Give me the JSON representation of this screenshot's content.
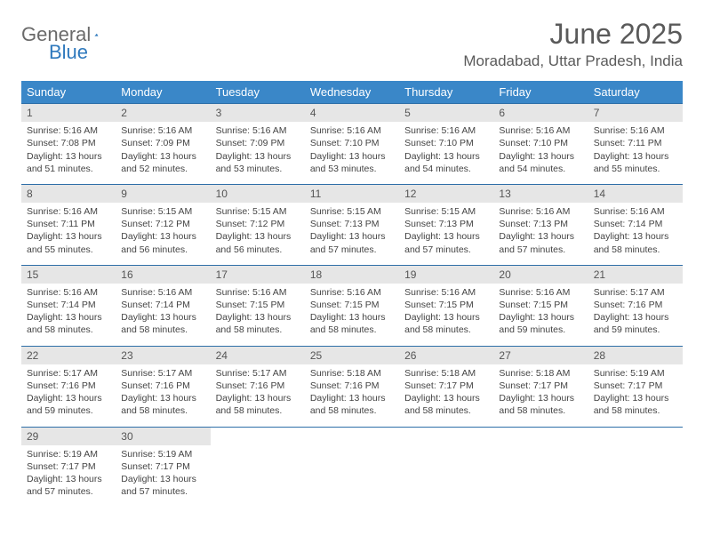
{
  "logo": {
    "textA": "General",
    "textB": "Blue"
  },
  "header": {
    "title": "June 2025",
    "location": "Moradabad, Uttar Pradesh, India"
  },
  "colors": {
    "header_bg": "#3a87c8",
    "header_text": "#ffffff",
    "dayrow_bg": "#e6e6e6",
    "border": "#2f6fa8",
    "logo_gray": "#6a6a6a",
    "logo_blue": "#2f79bd"
  },
  "weekdays": [
    "Sunday",
    "Monday",
    "Tuesday",
    "Wednesday",
    "Thursday",
    "Friday",
    "Saturday"
  ],
  "days": [
    {
      "n": "1",
      "sr": "5:16 AM",
      "ss": "7:08 PM",
      "dl": "13 hours and 51 minutes."
    },
    {
      "n": "2",
      "sr": "5:16 AM",
      "ss": "7:09 PM",
      "dl": "13 hours and 52 minutes."
    },
    {
      "n": "3",
      "sr": "5:16 AM",
      "ss": "7:09 PM",
      "dl": "13 hours and 53 minutes."
    },
    {
      "n": "4",
      "sr": "5:16 AM",
      "ss": "7:10 PM",
      "dl": "13 hours and 53 minutes."
    },
    {
      "n": "5",
      "sr": "5:16 AM",
      "ss": "7:10 PM",
      "dl": "13 hours and 54 minutes."
    },
    {
      "n": "6",
      "sr": "5:16 AM",
      "ss": "7:10 PM",
      "dl": "13 hours and 54 minutes."
    },
    {
      "n": "7",
      "sr": "5:16 AM",
      "ss": "7:11 PM",
      "dl": "13 hours and 55 minutes."
    },
    {
      "n": "8",
      "sr": "5:16 AM",
      "ss": "7:11 PM",
      "dl": "13 hours and 55 minutes."
    },
    {
      "n": "9",
      "sr": "5:15 AM",
      "ss": "7:12 PM",
      "dl": "13 hours and 56 minutes."
    },
    {
      "n": "10",
      "sr": "5:15 AM",
      "ss": "7:12 PM",
      "dl": "13 hours and 56 minutes."
    },
    {
      "n": "11",
      "sr": "5:15 AM",
      "ss": "7:13 PM",
      "dl": "13 hours and 57 minutes."
    },
    {
      "n": "12",
      "sr": "5:15 AM",
      "ss": "7:13 PM",
      "dl": "13 hours and 57 minutes."
    },
    {
      "n": "13",
      "sr": "5:16 AM",
      "ss": "7:13 PM",
      "dl": "13 hours and 57 minutes."
    },
    {
      "n": "14",
      "sr": "5:16 AM",
      "ss": "7:14 PM",
      "dl": "13 hours and 58 minutes."
    },
    {
      "n": "15",
      "sr": "5:16 AM",
      "ss": "7:14 PM",
      "dl": "13 hours and 58 minutes."
    },
    {
      "n": "16",
      "sr": "5:16 AM",
      "ss": "7:14 PM",
      "dl": "13 hours and 58 minutes."
    },
    {
      "n": "17",
      "sr": "5:16 AM",
      "ss": "7:15 PM",
      "dl": "13 hours and 58 minutes."
    },
    {
      "n": "18",
      "sr": "5:16 AM",
      "ss": "7:15 PM",
      "dl": "13 hours and 58 minutes."
    },
    {
      "n": "19",
      "sr": "5:16 AM",
      "ss": "7:15 PM",
      "dl": "13 hours and 58 minutes."
    },
    {
      "n": "20",
      "sr": "5:16 AM",
      "ss": "7:15 PM",
      "dl": "13 hours and 59 minutes."
    },
    {
      "n": "21",
      "sr": "5:17 AM",
      "ss": "7:16 PM",
      "dl": "13 hours and 59 minutes."
    },
    {
      "n": "22",
      "sr": "5:17 AM",
      "ss": "7:16 PM",
      "dl": "13 hours and 59 minutes."
    },
    {
      "n": "23",
      "sr": "5:17 AM",
      "ss": "7:16 PM",
      "dl": "13 hours and 58 minutes."
    },
    {
      "n": "24",
      "sr": "5:17 AM",
      "ss": "7:16 PM",
      "dl": "13 hours and 58 minutes."
    },
    {
      "n": "25",
      "sr": "5:18 AM",
      "ss": "7:16 PM",
      "dl": "13 hours and 58 minutes."
    },
    {
      "n": "26",
      "sr": "5:18 AM",
      "ss": "7:17 PM",
      "dl": "13 hours and 58 minutes."
    },
    {
      "n": "27",
      "sr": "5:18 AM",
      "ss": "7:17 PM",
      "dl": "13 hours and 58 minutes."
    },
    {
      "n": "28",
      "sr": "5:19 AM",
      "ss": "7:17 PM",
      "dl": "13 hours and 58 minutes."
    },
    {
      "n": "29",
      "sr": "5:19 AM",
      "ss": "7:17 PM",
      "dl": "13 hours and 57 minutes."
    },
    {
      "n": "30",
      "sr": "5:19 AM",
      "ss": "7:17 PM",
      "dl": "13 hours and 57 minutes."
    }
  ],
  "labels": {
    "sunrise": "Sunrise:",
    "sunset": "Sunset:",
    "daylight": "Daylight:"
  },
  "layout": {
    "start_weekday": 0,
    "weeks": 5
  }
}
